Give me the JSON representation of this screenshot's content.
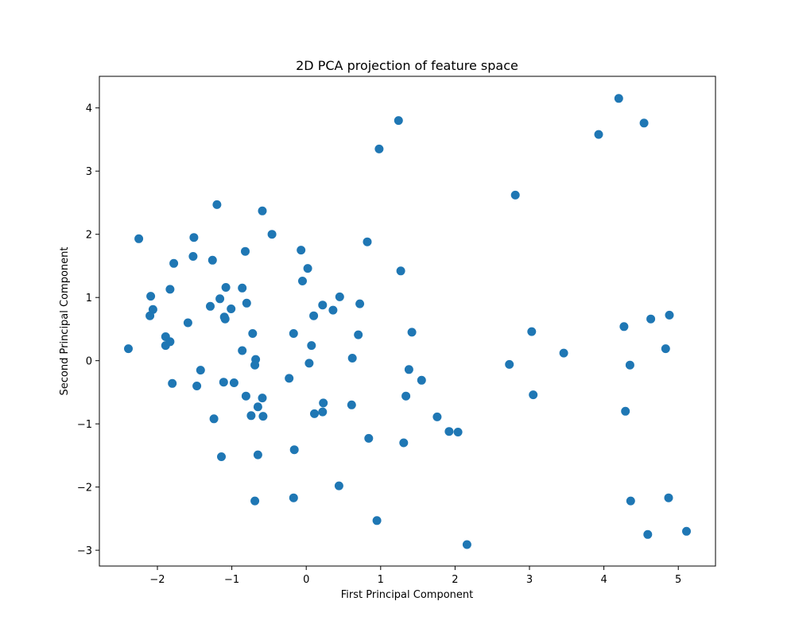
{
  "chart_data": {
    "type": "scatter",
    "title": "2D PCA projection of feature space",
    "xlabel": "First Principal Component",
    "ylabel": "Second Principal Component",
    "xlim": [
      -2.78,
      5.5
    ],
    "ylim": [
      -3.25,
      4.5
    ],
    "grid": false,
    "legend": "none",
    "marker_color": "#1f77b4",
    "xticks": [
      -2,
      -1,
      0,
      1,
      2,
      3,
      4,
      5
    ],
    "yticks": [
      -3,
      -2,
      -1,
      0,
      1,
      2,
      3,
      4
    ],
    "xtick_labels": [
      "−2",
      "−1",
      "0",
      "1",
      "2",
      "3",
      "4",
      "5"
    ],
    "ytick_labels": [
      "−3",
      "−2",
      "−1",
      "0",
      "1",
      "2",
      "3",
      "4"
    ],
    "points": [
      {
        "x": -2.39,
        "y": 0.19
      },
      {
        "x": -2.25,
        "y": 1.93
      },
      {
        "x": -2.09,
        "y": 1.02
      },
      {
        "x": -2.06,
        "y": 0.81
      },
      {
        "x": -2.1,
        "y": 0.71
      },
      {
        "x": -1.89,
        "y": 0.38
      },
      {
        "x": -1.89,
        "y": 0.24
      },
      {
        "x": -1.83,
        "y": 0.3
      },
      {
        "x": -1.83,
        "y": 1.13
      },
      {
        "x": -1.78,
        "y": 1.54
      },
      {
        "x": -1.8,
        "y": -0.36
      },
      {
        "x": -1.59,
        "y": 0.6
      },
      {
        "x": -1.51,
        "y": 1.95
      },
      {
        "x": -1.52,
        "y": 1.65
      },
      {
        "x": -1.47,
        "y": -0.4
      },
      {
        "x": -1.42,
        "y": -0.15
      },
      {
        "x": -1.29,
        "y": 0.86
      },
      {
        "x": -1.26,
        "y": 1.59
      },
      {
        "x": -1.24,
        "y": -0.92
      },
      {
        "x": -1.2,
        "y": 2.47
      },
      {
        "x": -1.16,
        "y": 0.98
      },
      {
        "x": -1.14,
        "y": -1.52
      },
      {
        "x": -1.1,
        "y": 0.69
      },
      {
        "x": -1.09,
        "y": 0.66
      },
      {
        "x": -1.08,
        "y": 1.16
      },
      {
        "x": -1.11,
        "y": -0.34
      },
      {
        "x": -1.01,
        "y": 0.82
      },
      {
        "x": -0.97,
        "y": -0.35
      },
      {
        "x": -0.86,
        "y": 1.15
      },
      {
        "x": -0.86,
        "y": 0.16
      },
      {
        "x": -0.82,
        "y": 1.73
      },
      {
        "x": -0.8,
        "y": 0.91
      },
      {
        "x": -0.81,
        "y": -0.56
      },
      {
        "x": -0.74,
        "y": -0.87
      },
      {
        "x": -0.72,
        "y": 0.43
      },
      {
        "x": -0.68,
        "y": 0.02
      },
      {
        "x": -0.69,
        "y": -0.07
      },
      {
        "x": -0.69,
        "y": -2.22
      },
      {
        "x": -0.65,
        "y": -0.73
      },
      {
        "x": -0.65,
        "y": -1.49
      },
      {
        "x": -0.59,
        "y": 2.37
      },
      {
        "x": -0.59,
        "y": -0.59
      },
      {
        "x": -0.58,
        "y": -0.88
      },
      {
        "x": -0.46,
        "y": 2.0
      },
      {
        "x": -0.23,
        "y": -0.28
      },
      {
        "x": -0.17,
        "y": 0.43
      },
      {
        "x": -0.16,
        "y": -1.41
      },
      {
        "x": -0.17,
        "y": -2.17
      },
      {
        "x": -0.07,
        "y": 1.75
      },
      {
        "x": -0.05,
        "y": 1.26
      },
      {
        "x": 0.02,
        "y": 1.46
      },
      {
        "x": 0.04,
        "y": -0.04
      },
      {
        "x": 0.07,
        "y": 0.24
      },
      {
        "x": 0.1,
        "y": 0.71
      },
      {
        "x": 0.11,
        "y": -0.84
      },
      {
        "x": 0.22,
        "y": 0.88
      },
      {
        "x": 0.22,
        "y": -0.81
      },
      {
        "x": 0.23,
        "y": -0.67
      },
      {
        "x": 0.36,
        "y": 0.8
      },
      {
        "x": 0.45,
        "y": 1.01
      },
      {
        "x": 0.44,
        "y": -1.98
      },
      {
        "x": 0.61,
        "y": -0.7
      },
      {
        "x": 0.62,
        "y": 0.04
      },
      {
        "x": 0.7,
        "y": 0.41
      },
      {
        "x": 0.72,
        "y": 0.9
      },
      {
        "x": 0.82,
        "y": 1.88
      },
      {
        "x": 0.84,
        "y": -1.23
      },
      {
        "x": 0.95,
        "y": -2.53
      },
      {
        "x": 0.98,
        "y": 3.35
      },
      {
        "x": 1.24,
        "y": 3.8
      },
      {
        "x": 1.27,
        "y": 1.42
      },
      {
        "x": 1.31,
        "y": -1.3
      },
      {
        "x": 1.34,
        "y": -0.56
      },
      {
        "x": 1.38,
        "y": -0.14
      },
      {
        "x": 1.42,
        "y": 0.45
      },
      {
        "x": 1.55,
        "y": -0.31
      },
      {
        "x": 1.76,
        "y": -0.89
      },
      {
        "x": 1.92,
        "y": -1.12
      },
      {
        "x": 2.04,
        "y": -1.13
      },
      {
        "x": 2.16,
        "y": -2.91
      },
      {
        "x": 2.73,
        "y": -0.06
      },
      {
        "x": 2.81,
        "y": 2.62
      },
      {
        "x": 3.03,
        "y": 0.46
      },
      {
        "x": 3.05,
        "y": -0.54
      },
      {
        "x": 3.46,
        "y": 0.12
      },
      {
        "x": 3.93,
        "y": 3.58
      },
      {
        "x": 4.2,
        "y": 4.15
      },
      {
        "x": 4.27,
        "y": 0.54
      },
      {
        "x": 4.29,
        "y": -0.8
      },
      {
        "x": 4.35,
        "y": -0.07
      },
      {
        "x": 4.36,
        "y": -2.22
      },
      {
        "x": 4.54,
        "y": 3.76
      },
      {
        "x": 4.59,
        "y": -2.75
      },
      {
        "x": 4.63,
        "y": 0.66
      },
      {
        "x": 4.83,
        "y": 0.19
      },
      {
        "x": 4.87,
        "y": -2.17
      },
      {
        "x": 4.88,
        "y": 0.72
      },
      {
        "x": 5.11,
        "y": -2.7
      }
    ]
  }
}
